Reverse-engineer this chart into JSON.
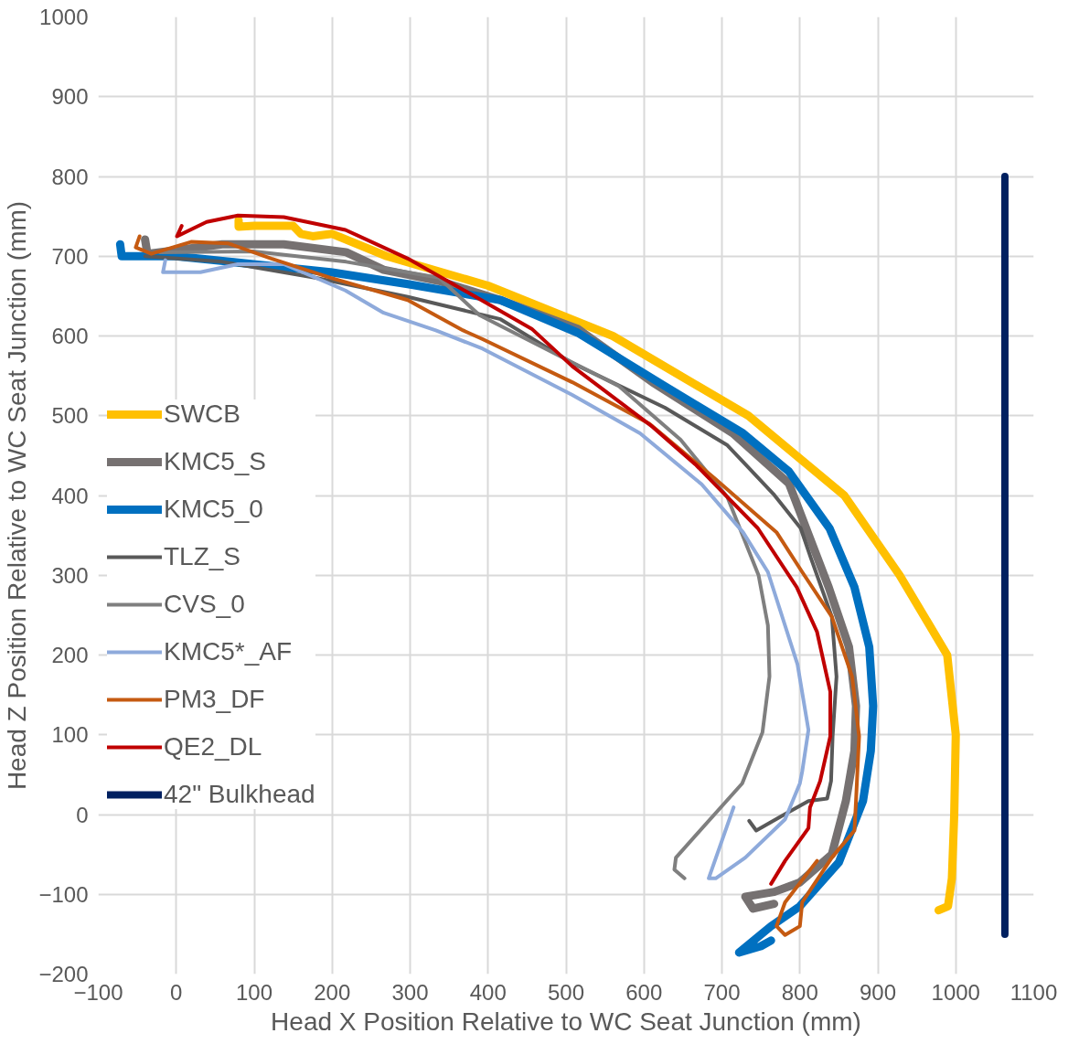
{
  "chart_data": {
    "type": "line",
    "xlabel": "Head X Position Relative to WC Seat Junction (mm)",
    "ylabel": "Head Z Position Relative to WC Seat Junction (mm)",
    "xlim": [
      -100,
      1100
    ],
    "ylim": [
      -200,
      1000
    ],
    "xticks": [
      -100,
      0,
      100,
      200,
      300,
      400,
      500,
      600,
      700,
      800,
      900,
      1000,
      1100
    ],
    "yticks": [
      -200,
      -100,
      0,
      100,
      200,
      300,
      400,
      500,
      600,
      700,
      800,
      900,
      1000
    ],
    "grid": true,
    "legend": "left",
    "line_style": "solid",
    "marker": "none",
    "series": [
      {
        "name": "SWCB",
        "color": "#ffc000",
        "x": [
          80,
          80,
          100,
          150,
          160,
          175,
          200,
          270,
          400,
          560,
          734,
          857,
          928,
          989,
          1000,
          998,
          995,
          990,
          978
        ],
        "values": [
          745,
          737,
          738,
          738,
          728,
          725,
          728,
          700,
          663,
          600,
          500,
          400,
          300,
          200,
          100,
          0,
          -80,
          -115,
          -120
        ]
      },
      {
        "name": "KMC5_S",
        "color": "#767171",
        "x": [
          -40,
          -37,
          59,
          138,
          218,
          266,
          337,
          416,
          515,
          611,
          714,
          786,
          837,
          863,
          872,
          870,
          859,
          841,
          800,
          767,
          730,
          740,
          767
        ],
        "values": [
          721,
          703,
          715,
          715,
          705,
          683,
          669,
          645,
          609,
          542,
          478,
          415,
          285,
          210,
          136,
          80,
          17,
          -50,
          -85,
          -97,
          -103,
          -118,
          -112
        ]
      },
      {
        "name": "KMC5_0",
        "color": "#0070c0",
        "x": [
          -72,
          -70,
          -1,
          99,
          198,
          297,
          416,
          515,
          627,
          727,
          786,
          838,
          870,
          889,
          894,
          891,
          881,
          850,
          800,
          763,
          722,
          750,
          763
        ],
        "values": [
          715,
          700,
          700,
          690,
          680,
          665,
          645,
          604,
          537,
          478,
          430,
          359,
          285,
          210,
          136,
          80,
          17,
          -60,
          -115,
          -140,
          -173,
          -165,
          -158
        ]
      },
      {
        "name": "TLZ_S",
        "color": "#595959",
        "x": [
          -40,
          59,
          178,
          297,
          416,
          508,
          627,
          707,
          766,
          801,
          814,
          841,
          847,
          842,
          840,
          835,
          811,
          780,
          744,
          735
        ],
        "values": [
          700,
          693,
          673,
          649,
          621,
          566,
          510,
          463,
          402,
          359,
          322,
          248,
          173,
          98,
          42,
          20,
          17,
          0,
          -20,
          -8
        ]
      },
      {
        "name": "CVS_0",
        "color": "#7f7f7f",
        "x": [
          -21,
          99,
          218,
          337,
          389,
          568,
          647,
          707,
          747,
          759,
          761,
          752,
          726,
          641,
          639,
          652
        ],
        "values": [
          705,
          706,
          693,
          673,
          626,
          537,
          470,
          398,
          300,
          237,
          173,
          103,
          39,
          -54,
          -69,
          -80
        ]
      },
      {
        "name": "KMC5*_AF",
        "color": "#8eaadb",
        "x": [
          -14,
          -17,
          31,
          79,
          138,
          217,
          266,
          333,
          393,
          508,
          595,
          674,
          727,
          759,
          797,
          811,
          803,
          800,
          781,
          730,
          692,
          683,
          715
        ],
        "values": [
          695,
          680,
          680,
          690,
          690,
          657,
          629,
          607,
          584,
          526,
          478,
          414,
          354,
          304,
          188,
          106,
          54,
          39,
          -6,
          -54,
          -80,
          -80,
          9
        ]
      },
      {
        "name": "PM3_DF",
        "color": "#c55a11",
        "x": [
          -47,
          -52,
          -32,
          19,
          67,
          122,
          198,
          297,
          368,
          393,
          508,
          607,
          690,
          770,
          803,
          841,
          867,
          876,
          872,
          870,
          841,
          803,
          800,
          781,
          770,
          781,
          822
        ],
        "values": [
          725,
          711,
          703,
          718,
          716,
          697,
          673,
          645,
          607,
          596,
          542,
          490,
          422,
          354,
          304,
          248,
          173,
          98,
          17,
          -20,
          -54,
          -110,
          -140,
          -151,
          -140,
          -110,
          -58
        ]
      },
      {
        "name": "QE2_DL",
        "color": "#c00000",
        "x": [
          7,
          1,
          39,
          79,
          138,
          217,
          297,
          377,
          456,
          508,
          611,
          667,
          746,
          796,
          822,
          839,
          839,
          826,
          819,
          813,
          811,
          781,
          763
        ],
        "values": [
          738,
          725,
          743,
          751,
          749,
          733,
          697,
          653,
          609,
          562,
          486,
          438,
          359,
          285,
          229,
          154,
          98,
          42,
          24,
          9,
          -17,
          -58,
          -87
        ]
      },
      {
        "name": "42\" Bulkhead",
        "color": "#002060",
        "x": [
          1063,
          1063
        ],
        "values": [
          800,
          -150
        ]
      }
    ]
  }
}
